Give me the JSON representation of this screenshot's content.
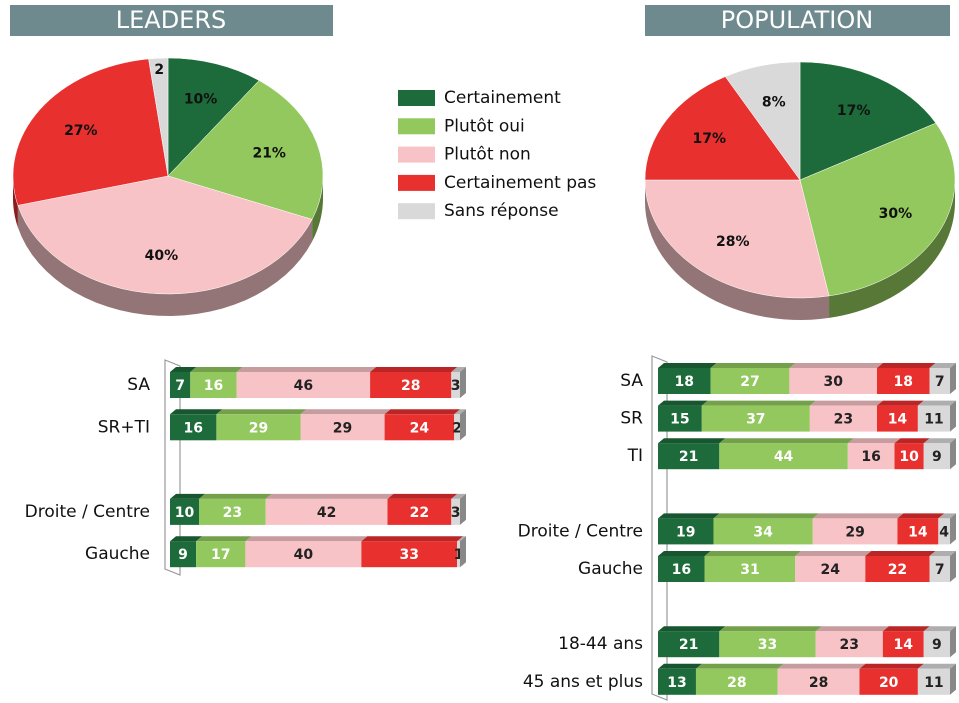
{
  "legend": {
    "labels": [
      "Certainement",
      "Plutôt oui",
      "Plutôt non",
      "Certainement pas",
      "Sans réponse"
    ],
    "colors": [
      "#1d6b3a",
      "#92c85e",
      "#f7c3c6",
      "#e8302f",
      "#d9d9d9"
    ]
  },
  "chart_data": [
    {
      "type": "pie",
      "title": "LEADERS",
      "values": [
        10,
        21,
        40,
        27,
        2
      ],
      "value_labels": [
        "10%",
        "21%",
        "40%",
        "27%",
        "2"
      ]
    },
    {
      "type": "bar",
      "categories": [
        "SA",
        "SR+TI",
        null,
        "Droite / Centre",
        "Gauche"
      ],
      "series": [
        {
          "values": [
            7,
            16,
            null,
            10,
            9
          ]
        },
        {
          "values": [
            16,
            29,
            null,
            23,
            17
          ]
        },
        {
          "values": [
            46,
            29,
            null,
            42,
            40
          ]
        },
        {
          "values": [
            28,
            24,
            null,
            22,
            33
          ]
        },
        {
          "values": [
            3,
            2,
            null,
            3,
            1
          ]
        }
      ]
    },
    {
      "type": "pie",
      "title": "POPULATION",
      "values": [
        17,
        30,
        28,
        17,
        8
      ],
      "value_labels": [
        "17%",
        "30%",
        "28%",
        "17%",
        "8%"
      ]
    },
    {
      "type": "bar",
      "categories": [
        "SA",
        "SR",
        "TI",
        null,
        "Droite / Centre",
        "Gauche",
        null,
        "18-44 ans",
        "45 ans et plus"
      ],
      "series": [
        {
          "values": [
            18,
            15,
            21,
            null,
            19,
            16,
            null,
            21,
            13
          ]
        },
        {
          "values": [
            27,
            37,
            44,
            null,
            34,
            31,
            null,
            33,
            28
          ]
        },
        {
          "values": [
            30,
            23,
            16,
            null,
            29,
            24,
            null,
            23,
            28
          ]
        },
        {
          "values": [
            18,
            14,
            10,
            null,
            14,
            22,
            null,
            14,
            20
          ]
        },
        {
          "values": [
            7,
            11,
            9,
            null,
            4,
            7,
            null,
            9,
            11
          ]
        }
      ]
    }
  ]
}
